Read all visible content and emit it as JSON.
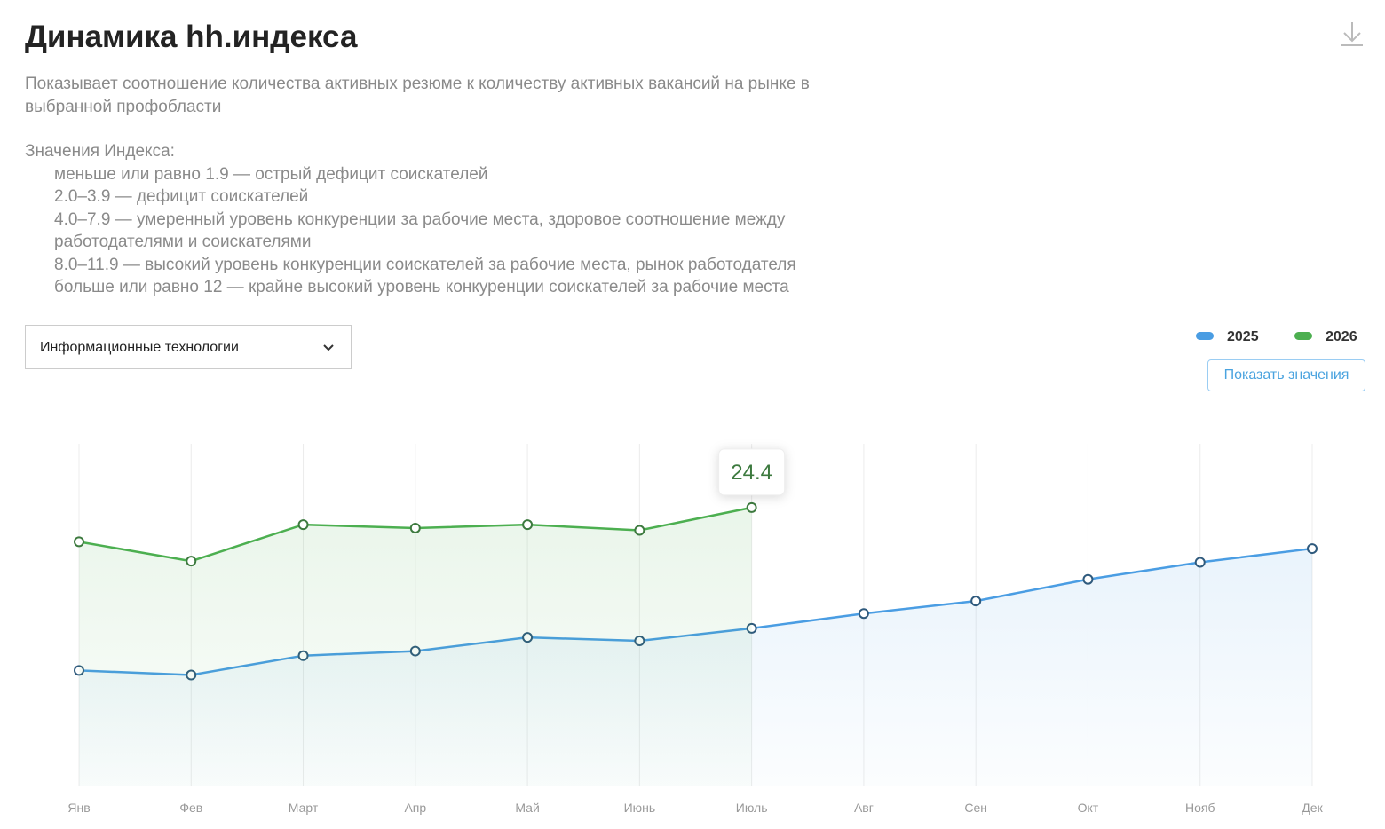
{
  "header": {
    "title": "Динамика hh.индекса",
    "description": "Показывает соотношение количества активных резюме к количеству активных вакансий на рынке в выбранной профобласти"
  },
  "index_values": {
    "title": "Значения Индекса:",
    "items": [
      "меньше или равно 1.9 — острый дефицит соискателей",
      "2.0–3.9 — дефицит соискателей",
      "4.0–7.9 — умеренный уровень конкуренции за рабочие места, здоровое соотношение между работодателями и соискателями",
      "8.0–11.9 — высокий уровень конкуренции соискателей за рабочие места, рынок работодателя",
      "больше или равно 12 — крайне высокий уровень конкуренции соискателей за рабочие места"
    ]
  },
  "controls": {
    "dropdown": "Информационные технологии",
    "button": "Показать значения"
  },
  "chart_data": {
    "type": "line",
    "categories": [
      "Янв",
      "Фев",
      "Март",
      "Апр",
      "Май",
      "Июнь",
      "Июль",
      "Авг",
      "Сен",
      "Окт",
      "Нояб",
      "Дек"
    ],
    "series": [
      {
        "name": "2025",
        "color": "#4a9de3",
        "values": [
          10.1,
          9.7,
          11.4,
          11.8,
          13.0,
          12.7,
          13.8,
          15.1,
          16.2,
          18.1,
          19.6,
          20.8
        ]
      },
      {
        "name": "2026",
        "color": "#4caf50",
        "values": [
          21.4,
          19.7,
          22.9,
          22.6,
          22.9,
          22.4,
          24.4,
          null,
          null,
          null,
          null,
          null
        ]
      }
    ],
    "tooltip": {
      "series": 1,
      "index": 6
    },
    "ylim": [
      0,
      30
    ],
    "grid": true
  }
}
